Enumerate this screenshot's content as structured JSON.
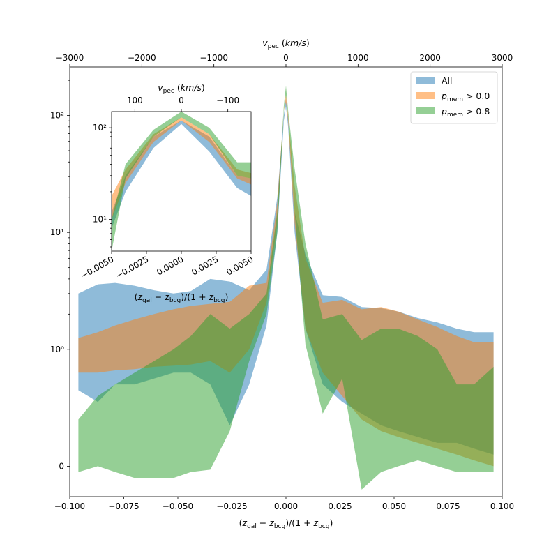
{
  "chart_data": {
    "type": "area",
    "title": "",
    "xlabel": "(z_gal − z_bcg)/(1 + z_bcg)",
    "xlabel_top": "v_pec (km/s)",
    "ylabel": "",
    "yscale": "symlog",
    "xlim": [
      -0.1,
      0.1
    ],
    "vlim": [
      -3000,
      3000
    ],
    "ylim": [
      -0.26,
      260
    ],
    "x_ticks": [
      "−0.100",
      "−0.075",
      "−0.050",
      "−0.025",
      "0.000",
      "0.025",
      "0.050",
      "0.075",
      "0.100"
    ],
    "v_ticks": [
      "−3000",
      "−2000",
      "−1000",
      "0",
      "1000",
      "2000",
      "3000"
    ],
    "y_ticks": [
      "0",
      "10⁰",
      "10¹",
      "10²"
    ],
    "grid": false,
    "legend_position": "upper right",
    "legend": [
      {
        "key": "all",
        "label": "All",
        "sub": "",
        "rest": "",
        "color": "#1f77b4"
      },
      {
        "key": "pmem0",
        "label": "p",
        "sub": "mem",
        "rest": " > 0.0",
        "color": "#ff7f0e"
      },
      {
        "key": "pmem8",
        "label": "p",
        "sub": "mem",
        "rest": " > 0.8",
        "color": "#2ca02c"
      }
    ],
    "series": [
      {
        "name": "All",
        "color": "#1f77b4",
        "x": [
          -0.096,
          -0.087,
          -0.079,
          -0.07,
          -0.061,
          -0.052,
          -0.044,
          -0.035,
          -0.026,
          -0.017,
          -0.009,
          -0.004,
          -0.001,
          0.0,
          0.001,
          0.004,
          0.009,
          0.017,
          0.026,
          0.035,
          0.044,
          0.052,
          0.061,
          0.07,
          0.079,
          0.087,
          0.096
        ],
        "lower": [
          0.65,
          0.55,
          0.7,
          0.7,
          0.75,
          0.8,
          0.8,
          0.7,
          0.35,
          0.7,
          1.6,
          10.0,
          90.0,
          120.0,
          80.0,
          10.0,
          1.5,
          0.7,
          0.55,
          0.45,
          0.35,
          0.3,
          0.25,
          0.2,
          0.2,
          0.15,
          0.1
        ],
        "upper": [
          3.0,
          3.6,
          3.7,
          3.5,
          3.2,
          3.0,
          3.15,
          4.0,
          3.8,
          3.2,
          4.8,
          20.0,
          100.0,
          140.0,
          95.0,
          15.0,
          6.5,
          2.9,
          2.8,
          2.3,
          2.25,
          2.1,
          1.85,
          1.7,
          1.5,
          1.4,
          1.4
        ]
      },
      {
        "name": "p_mem > 0.0",
        "color": "#ff7f0e",
        "x": [
          -0.096,
          -0.087,
          -0.079,
          -0.07,
          -0.061,
          -0.052,
          -0.044,
          -0.035,
          -0.026,
          -0.017,
          -0.009,
          -0.004,
          -0.001,
          0.0,
          0.001,
          0.004,
          0.009,
          0.017,
          0.026,
          0.035,
          0.044,
          0.052,
          0.061,
          0.07,
          0.079,
          0.087,
          0.096
        ],
        "lower": [
          0.8,
          0.8,
          0.82,
          0.83,
          0.85,
          0.86,
          0.87,
          0.9,
          0.8,
          1.0,
          2.5,
          12.0,
          110.0,
          130.0,
          90.0,
          12.0,
          1.5,
          0.8,
          0.6,
          0.4,
          0.3,
          0.25,
          0.2,
          0.15,
          0.1,
          0.05,
          0.0
        ],
        "upper": [
          1.25,
          1.4,
          1.6,
          1.8,
          2.0,
          2.2,
          2.35,
          2.45,
          2.55,
          3.5,
          3.7,
          18.0,
          110.0,
          150.0,
          100.0,
          25.0,
          6.0,
          2.5,
          2.65,
          2.2,
          2.3,
          2.1,
          1.8,
          1.55,
          1.3,
          1.15,
          1.15
        ]
      },
      {
        "name": "p_mem > 0.8",
        "color": "#2ca02c",
        "x": [
          -0.096,
          -0.087,
          -0.079,
          -0.07,
          -0.061,
          -0.052,
          -0.044,
          -0.035,
          -0.026,
          -0.017,
          -0.009,
          -0.004,
          -0.001,
          0.0,
          0.001,
          0.004,
          0.009,
          0.017,
          0.026,
          0.035,
          0.044,
          0.052,
          0.061,
          0.07,
          0.079,
          0.087,
          0.096
        ],
        "lower": [
          -0.05,
          0.0,
          -0.05,
          -0.1,
          -0.1,
          -0.1,
          -0.05,
          -0.03,
          0.3,
          0.9,
          2.0,
          10.0,
          110.0,
          150.0,
          100.0,
          15.0,
          1.1,
          0.45,
          0.75,
          -0.2,
          -0.05,
          0.0,
          0.05,
          0.0,
          -0.05,
          -0.05,
          -0.05
        ],
        "upper": [
          0.4,
          0.6,
          0.7,
          0.8,
          0.9,
          1.0,
          1.3,
          2.0,
          1.5,
          2.0,
          3.0,
          15.0,
          120.0,
          180.0,
          110.0,
          35.0,
          8.0,
          1.8,
          2.0,
          1.2,
          1.5,
          1.5,
          1.3,
          1.0,
          0.7,
          0.7,
          0.85
        ]
      }
    ],
    "inset": {
      "xlim": [
        -0.005,
        0.005
      ],
      "vlim": [
        150,
        -150
      ],
      "ylim": [
        4.5,
        150
      ],
      "yscale": "log",
      "xlabel": "(z_gal − z_bcg)/(1 + z_bcg)",
      "xlabel_top": "v_pec (km/s)",
      "x_ticks": [
        "−0.0050",
        "−0.0025",
        "0.0000",
        "0.0025",
        "0.0050"
      ],
      "v_ticks": [
        "100",
        "0",
        "−100"
      ],
      "y_ticks": [
        "10¹",
        "10²"
      ],
      "series": [
        {
          "name": "All",
          "color": "#1f77b4",
          "x": [
            -0.005,
            -0.004,
            -0.002,
            0.0,
            0.002,
            0.004,
            0.005
          ],
          "lower": [
            8.0,
            20.0,
            60.0,
            110.0,
            55.0,
            22.0,
            18.0
          ],
          "upper": [
            12.0,
            30.0,
            80.0,
            120.0,
            80.0,
            30.0,
            28.0
          ]
        },
        {
          "name": "p_mem > 0.0",
          "color": "#ff7f0e",
          "x": [
            -0.005,
            -0.004,
            -0.002,
            0.0,
            0.002,
            0.004,
            0.005
          ],
          "lower": [
            10.0,
            25.0,
            70.0,
            120.0,
            70.0,
            28.0,
            24.0
          ],
          "upper": [
            18.0,
            35.0,
            85.0,
            130.0,
            85.0,
            35.0,
            32.0
          ]
        },
        {
          "name": "p_mem > 0.8",
          "color": "#2ca02c",
          "x": [
            -0.005,
            -0.004,
            -0.002,
            0.0,
            0.002,
            0.004,
            0.005
          ],
          "lower": [
            4.5,
            28.0,
            80.0,
            130.0,
            85.0,
            30.0,
            28.0
          ],
          "upper": [
            10.0,
            40.0,
            95.0,
            150.0,
            100.0,
            42.0,
            42.0
          ]
        }
      ]
    }
  }
}
